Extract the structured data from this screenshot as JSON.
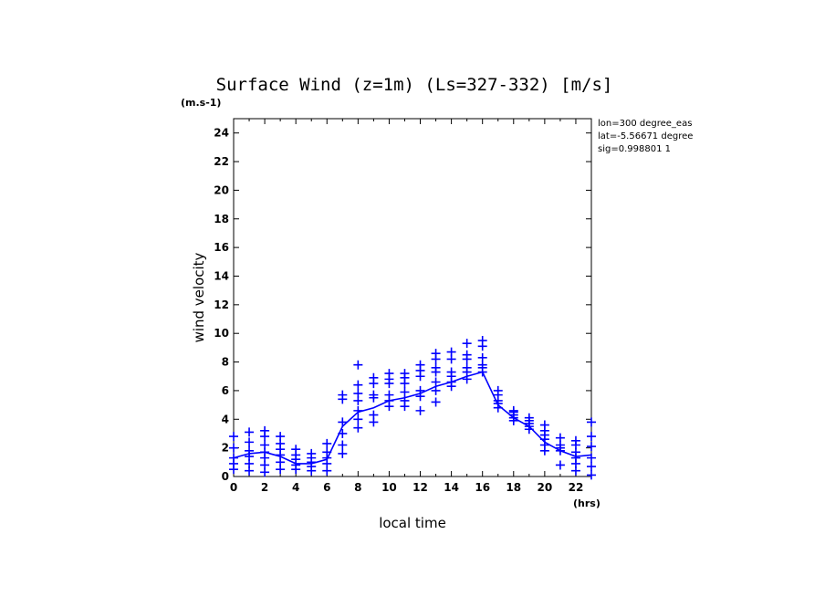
{
  "chart_data": {
    "type": "line",
    "title": "Surface Wind (z=1m) (Ls=327-332) [m/s]",
    "yunit": "(m.s-1)",
    "xunit": "(hrs)",
    "xlabel": "local time",
    "ylabel": "wind velocity",
    "xlim": [
      0,
      23
    ],
    "ylim": [
      0,
      25
    ],
    "xticks": [
      0,
      2,
      4,
      6,
      8,
      10,
      12,
      14,
      16,
      18,
      20,
      22
    ],
    "yticks": [
      0,
      2,
      4,
      6,
      8,
      10,
      12,
      14,
      16,
      18,
      20,
      22,
      24
    ],
    "info_lines": [
      "lon=300 degree_eas",
      "lat=-5.56671 degree",
      "sig=0.998801 1"
    ],
    "color": "#0000ff",
    "mean": {
      "x": [
        0,
        1,
        2,
        3,
        4,
        5,
        6,
        7,
        8,
        9,
        10,
        11,
        12,
        13,
        14,
        15,
        16,
        17,
        18,
        19,
        20,
        21,
        22,
        23
      ],
      "y": [
        1.3,
        1.6,
        1.7,
        1.4,
        0.9,
        0.9,
        1.2,
        3.5,
        4.5,
        4.8,
        5.3,
        5.5,
        5.8,
        6.3,
        6.6,
        7.0,
        7.3,
        5.0,
        4.1,
        3.5,
        2.4,
        1.8,
        1.4,
        1.5
      ]
    },
    "scatter": [
      {
        "x": 0,
        "y": [
          0.5,
          0.9,
          1.3,
          2.0,
          2.8
        ]
      },
      {
        "x": 1,
        "y": [
          0.4,
          0.9,
          1.4,
          1.8,
          2.4,
          3.1
        ]
      },
      {
        "x": 2,
        "y": [
          0.3,
          0.8,
          1.3,
          1.7,
          2.2,
          2.8,
          3.2
        ]
      },
      {
        "x": 3,
        "y": [
          0.5,
          1.0,
          1.5,
          1.9,
          2.3,
          2.8
        ]
      },
      {
        "x": 4,
        "y": [
          0.5,
          0.8,
          1.2,
          1.5,
          1.9
        ]
      },
      {
        "x": 5,
        "y": [
          0.4,
          0.7,
          1.0,
          1.3,
          1.6
        ]
      },
      {
        "x": 6,
        "y": [
          0.4,
          0.9,
          1.3,
          1.7,
          2.3
        ]
      },
      {
        "x": 7,
        "y": [
          1.6,
          2.2,
          3.0,
          3.8,
          5.4,
          5.7
        ]
      },
      {
        "x": 8,
        "y": [
          3.4,
          4.0,
          4.6,
          5.3,
          5.8,
          6.4,
          7.8
        ]
      },
      {
        "x": 9,
        "y": [
          3.8,
          4.3,
          5.5,
          5.7,
          6.5,
          6.9
        ]
      },
      {
        "x": 10,
        "y": [
          4.9,
          5.3,
          5.7,
          6.5,
          6.8,
          7.2
        ]
      },
      {
        "x": 11,
        "y": [
          4.9,
          5.3,
          5.9,
          6.5,
          6.9,
          7.2
        ]
      },
      {
        "x": 12,
        "y": [
          4.6,
          5.6,
          6.0,
          7.0,
          7.4,
          7.8
        ]
      },
      {
        "x": 13,
        "y": [
          5.2,
          6.0,
          6.6,
          7.3,
          7.6,
          8.2,
          8.6
        ]
      },
      {
        "x": 14,
        "y": [
          6.3,
          6.6,
          7.0,
          7.3,
          8.2,
          8.7
        ]
      },
      {
        "x": 15,
        "y": [
          6.8,
          7.3,
          7.6,
          8.2,
          8.5,
          9.3
        ]
      },
      {
        "x": 16,
        "y": [
          7.3,
          7.6,
          7.8,
          8.3,
          9.1,
          9.5
        ]
      },
      {
        "x": 17,
        "y": [
          4.8,
          5.1,
          5.3,
          5.7,
          6.0
        ]
      },
      {
        "x": 18,
        "y": [
          3.9,
          4.1,
          4.3,
          4.5,
          4.6
        ]
      },
      {
        "x": 19,
        "y": [
          3.3,
          3.5,
          3.7,
          3.9,
          4.1
        ]
      },
      {
        "x": 20,
        "y": [
          1.8,
          2.2,
          2.6,
          2.9,
          3.2,
          3.6
        ]
      },
      {
        "x": 21,
        "y": [
          0.8,
          1.8,
          2.0,
          2.2,
          2.7
        ]
      },
      {
        "x": 22,
        "y": [
          0.4,
          0.9,
          1.3,
          1.7,
          2.2,
          2.5
        ]
      },
      {
        "x": 23,
        "y": [
          0.1,
          0.7,
          1.3,
          2.1,
          2.8,
          3.8
        ]
      }
    ]
  }
}
